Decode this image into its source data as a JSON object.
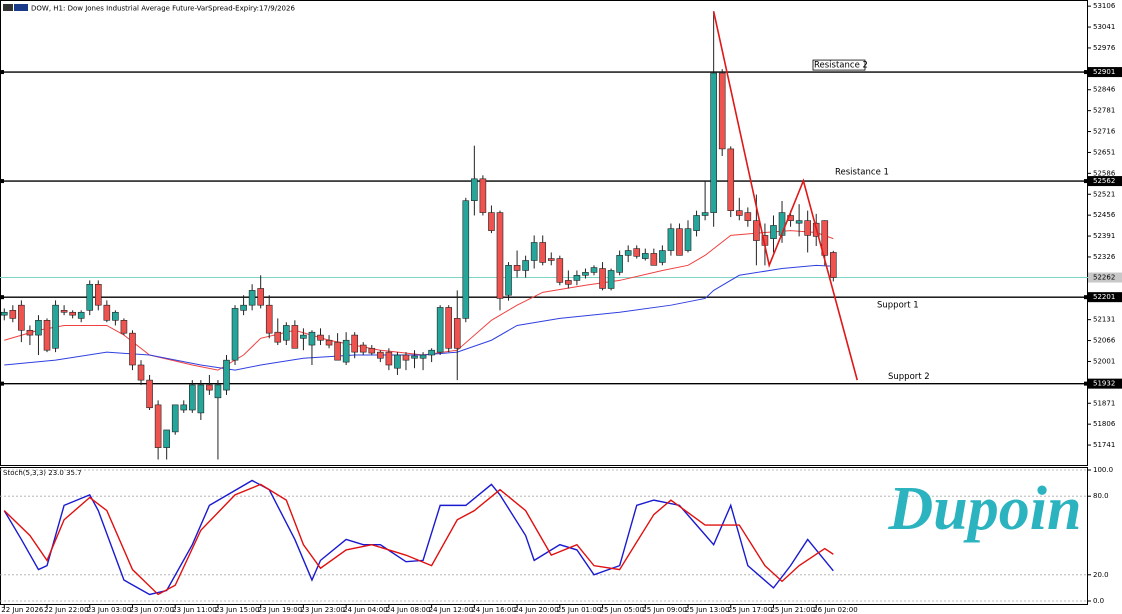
{
  "chart_data": [
    {
      "type": "candlestick",
      "title": "DOW, H1: Dow Jones Industrial Average Future-VarSpread-Expiry:17/9/2026",
      "categories": [
        "22 Jun 2026",
        null,
        null,
        null,
        null,
        "22 Jun 22:00",
        null,
        null,
        null,
        null,
        "23 Jun 03:00",
        null,
        null,
        null,
        null,
        "23 Jun 07:00",
        null,
        null,
        null,
        null,
        "23 Jun 11:00",
        null,
        null,
        null,
        null,
        "23 Jun 15:00",
        null,
        null,
        null,
        null,
        "23 Jun 19:00",
        null,
        null,
        null,
        null,
        "23 Jun 23:00",
        null,
        null,
        null,
        null,
        "24 Jun 04:00",
        null,
        null,
        null,
        null,
        "24 Jun 08:00",
        null,
        null,
        null,
        null,
        "24 Jun 12:00",
        null,
        null,
        null,
        null,
        "24 Jun 16:00",
        null,
        null,
        null,
        null,
        "24 Jun 20:00",
        null,
        null,
        null,
        null,
        "25 Jun 01:00",
        null,
        null,
        null,
        null,
        "25 Jun 05:00",
        null,
        null,
        null,
        null,
        "25 Jun 09:00",
        null,
        null,
        null,
        null,
        "25 Jun 13:00",
        null,
        null,
        null,
        null,
        "25 Jun 17:00",
        null,
        null,
        null,
        null,
        "25 Jun 21:00",
        null,
        null,
        null,
        null,
        "26 Jun 02:00",
        null,
        null
      ],
      "open": [
        52145,
        52160,
        52176,
        52098,
        52083,
        52129,
        52042,
        52160,
        52154,
        52135,
        52160,
        52241,
        52176,
        52129,
        52129,
        52089,
        51990,
        51943,
        51866,
        51733,
        51782,
        51850,
        51850,
        51841,
        51928,
        51888,
        51912,
        52005,
        52160,
        52176,
        52228,
        52176,
        52092,
        52067,
        52113,
        52073,
        52052,
        52083,
        52067,
        52061,
        51999,
        52083,
        52052,
        52042,
        52030,
        52030,
        51980,
        52021,
        52011,
        52011,
        52021,
        52030,
        52169,
        52135,
        52135,
        52501,
        52569,
        52464,
        52464,
        52207,
        52300,
        52284,
        52315,
        52371,
        52321,
        52321,
        52253,
        52253,
        52269,
        52278,
        52290,
        52228,
        52278,
        52331,
        52352,
        52321,
        52337,
        52309,
        52346,
        52414,
        52346,
        52408,
        52455,
        52464,
        52898,
        52662,
        52470,
        52464,
        52439,
        52393,
        52383,
        52393,
        52455,
        52431,
        52439,
        52431,
        52439,
        52340
      ],
      "high": [
        52166,
        52176,
        52191,
        52113,
        52145,
        52135,
        52191,
        52176,
        52160,
        52160,
        52253,
        52253,
        52191,
        52160,
        52135,
        52098,
        52005,
        51959,
        51880,
        51788,
        51866,
        51880,
        51943,
        51943,
        51959,
        51943,
        52021,
        52176,
        52207,
        52241,
        52269,
        52207,
        52135,
        52123,
        52129,
        52104,
        52098,
        52104,
        52083,
        52089,
        52092,
        52092,
        52061,
        52052,
        52036,
        52042,
        52030,
        52030,
        52036,
        52030,
        52042,
        52176,
        52176,
        52222,
        52510,
        52672,
        52580,
        52486,
        52470,
        52310,
        52346,
        52330,
        52393,
        52393,
        52340,
        52330,
        52284,
        52284,
        52290,
        52300,
        52310,
        52290,
        52346,
        52362,
        52362,
        52352,
        52352,
        52362,
        52430,
        52430,
        52440,
        52470,
        52560,
        53090,
        52910,
        52670,
        52510,
        52480,
        52520,
        52430,
        52455,
        52500,
        52470,
        52490,
        52470,
        52460,
        52440,
        52345
      ],
      "low": [
        52129,
        52123,
        52061,
        52052,
        52021,
        52030,
        52030,
        52145,
        52135,
        52123,
        52145,
        52160,
        52123,
        52113,
        52083,
        51974,
        51928,
        51850,
        51696,
        51696,
        51773,
        51841,
        51841,
        51819,
        51897,
        51696,
        51897,
        51990,
        52145,
        52160,
        52166,
        52073,
        52052,
        52052,
        52042,
        52036,
        51990,
        52052,
        52042,
        52005,
        51990,
        52011,
        52021,
        52021,
        51999,
        51974,
        51959,
        51974,
        51980,
        51974,
        51999,
        52021,
        52030,
        51943,
        52123,
        52455,
        52455,
        52400,
        52160,
        52190,
        52262,
        52262,
        52290,
        52300,
        52300,
        52238,
        52228,
        52238,
        52259,
        52269,
        52222,
        52222,
        52269,
        52310,
        52321,
        52315,
        52300,
        52300,
        52330,
        52331,
        52340,
        52390,
        52440,
        52420,
        52640,
        52450,
        52440,
        52420,
        52300,
        52300,
        52340,
        52370,
        52420,
        52390,
        52340,
        52360,
        52300,
        52250
      ],
      "close": [
        52154,
        52135,
        52098,
        52083,
        52129,
        52036,
        52176,
        52154,
        52145,
        52154,
        52241,
        52176,
        52129,
        52154,
        52089,
        51990,
        51943,
        51857,
        51733,
        51788,
        51866,
        51866,
        51928,
        51928,
        51912,
        51928,
        52005,
        52166,
        52176,
        52222,
        52176,
        52089,
        52061,
        52113,
        52042,
        52083,
        52092,
        52067,
        52052,
        52005,
        52067,
        52030,
        52030,
        52027,
        52011,
        51990,
        52021,
        52005,
        52018,
        52021,
        52036,
        52169,
        52042,
        52042,
        52501,
        52569,
        52464,
        52408,
        52197,
        52300,
        52284,
        52315,
        52371,
        52309,
        52315,
        52247,
        52241,
        52269,
        52278,
        52293,
        52228,
        52284,
        52331,
        52346,
        52328,
        52337,
        52300,
        52346,
        52414,
        52331,
        52414,
        52455,
        52464,
        52898,
        52662,
        52470,
        52455,
        52439,
        52377,
        52362,
        52424,
        52464,
        52439,
        52439,
        52393,
        52390,
        52331,
        52262
      ],
      "up_color": "#26a69a",
      "down_color": "#ef5350",
      "xlim": [
        -0.5,
        126.8
      ],
      "ylim": [
        51679,
        53122
      ],
      "yticks": [
        53106,
        53041,
        52976,
        52846,
        52781,
        52716,
        52651,
        52586,
        52521,
        52456,
        52391,
        52326,
        52131,
        52066,
        52001,
        51871,
        51806,
        51741
      ],
      "overlays": [
        {
          "color": "#f04040",
          "x": [
            0,
            4,
            7,
            12,
            14,
            17,
            22,
            25,
            28,
            30,
            34,
            38,
            44,
            49,
            53,
            57,
            60,
            63,
            68,
            72,
            77,
            80,
            82,
            85,
            89,
            92,
            95,
            97
          ],
          "values": [
            52067,
            52098,
            52113,
            52113,
            52083,
            52021,
            51990,
            51974,
            52021,
            52073,
            52098,
            52067,
            52036,
            52021,
            52036,
            52129,
            52176,
            52216,
            52238,
            52253,
            52284,
            52300,
            52331,
            52393,
            52402,
            52408,
            52402,
            52383
          ]
        },
        {
          "color": "#3040e0",
          "x": [
            0,
            6,
            12,
            17,
            23,
            27,
            30,
            35,
            41,
            49,
            53,
            57,
            60,
            65,
            72,
            78,
            82,
            83,
            86,
            91,
            95,
            97
          ],
          "values": [
            51990,
            52005,
            52030,
            52021,
            51990,
            51974,
            51990,
            52011,
            52021,
            52021,
            52030,
            52067,
            52113,
            52135,
            52154,
            52176,
            52197,
            52222,
            52269,
            52290,
            52300,
            52297
          ]
        }
      ],
      "levels": [
        {
          "label": "Resistance 2",
          "value": 52901
        },
        {
          "label": "Resistance 1",
          "value": 52562
        },
        {
          "label": "Support 1",
          "value": 52201
        },
        {
          "label": "Support 2",
          "value": 51932
        }
      ],
      "level_color": "#000000",
      "last_price": 52262,
      "last_price_color": "#7fd4c8",
      "drawing": {
        "color": "#e01818",
        "x": [
          83,
          89.5,
          93.5,
          99.8
        ],
        "values": [
          53090,
          52300,
          52563,
          51943
        ]
      }
    },
    {
      "type": "line",
      "title": "Stoch(5,3,3) 23.0 35.7",
      "xlim": [
        -0.5,
        126.8
      ],
      "ylim": [
        0,
        100
      ],
      "yticks": [
        {
          "value": 100,
          "label": "100.0"
        },
        {
          "value": 80,
          "label": "80.0"
        },
        {
          "value": 20,
          "label": "20.0"
        },
        {
          "value": 0,
          "label": "0.0"
        }
      ],
      "grid": true,
      "series": [
        {
          "color": "#1a1ad0",
          "x": [
            0,
            2,
            4,
            5,
            7,
            10,
            11,
            14,
            17,
            19,
            22,
            24,
            29,
            31,
            34,
            36,
            37,
            40,
            42,
            44,
            47,
            49,
            51,
            54,
            57,
            58,
            61,
            62,
            65,
            67,
            69,
            72,
            74,
            76,
            79,
            81,
            83,
            85,
            87,
            90,
            92,
            94,
            97
          ],
          "values": [
            69,
            47,
            24,
            27,
            73,
            81,
            69,
            16,
            5,
            8,
            43,
            73,
            92,
            85,
            47,
            16,
            31,
            47,
            43,
            43,
            30,
            31,
            73,
            73,
            89,
            81,
            50,
            31,
            43,
            39,
            20,
            27,
            73,
            77,
            73,
            58,
            43,
            73,
            27,
            10,
            27,
            47,
            23.0
          ]
        },
        {
          "color": "#e01010",
          "x": [
            0,
            3,
            5,
            7,
            10,
            12,
            15,
            18,
            20,
            23,
            27,
            30,
            33,
            35,
            37,
            40,
            43,
            47,
            50,
            53,
            55,
            58,
            61,
            64,
            67,
            69,
            72,
            76,
            78,
            82,
            86,
            89,
            91,
            93,
            96,
            97
          ],
          "values": [
            69,
            50,
            31,
            62,
            79,
            69,
            24,
            5,
            12,
            54,
            81,
            89,
            77,
            43,
            25,
            39,
            43,
            35,
            27,
            62,
            69,
            85,
            69,
            35,
            43,
            27,
            24,
            66,
            77,
            58,
            58,
            27,
            15,
            27,
            40,
            35.7
          ]
        }
      ],
      "watermark": "Dupoin",
      "watermark_color": "#2bb3c0"
    }
  ]
}
